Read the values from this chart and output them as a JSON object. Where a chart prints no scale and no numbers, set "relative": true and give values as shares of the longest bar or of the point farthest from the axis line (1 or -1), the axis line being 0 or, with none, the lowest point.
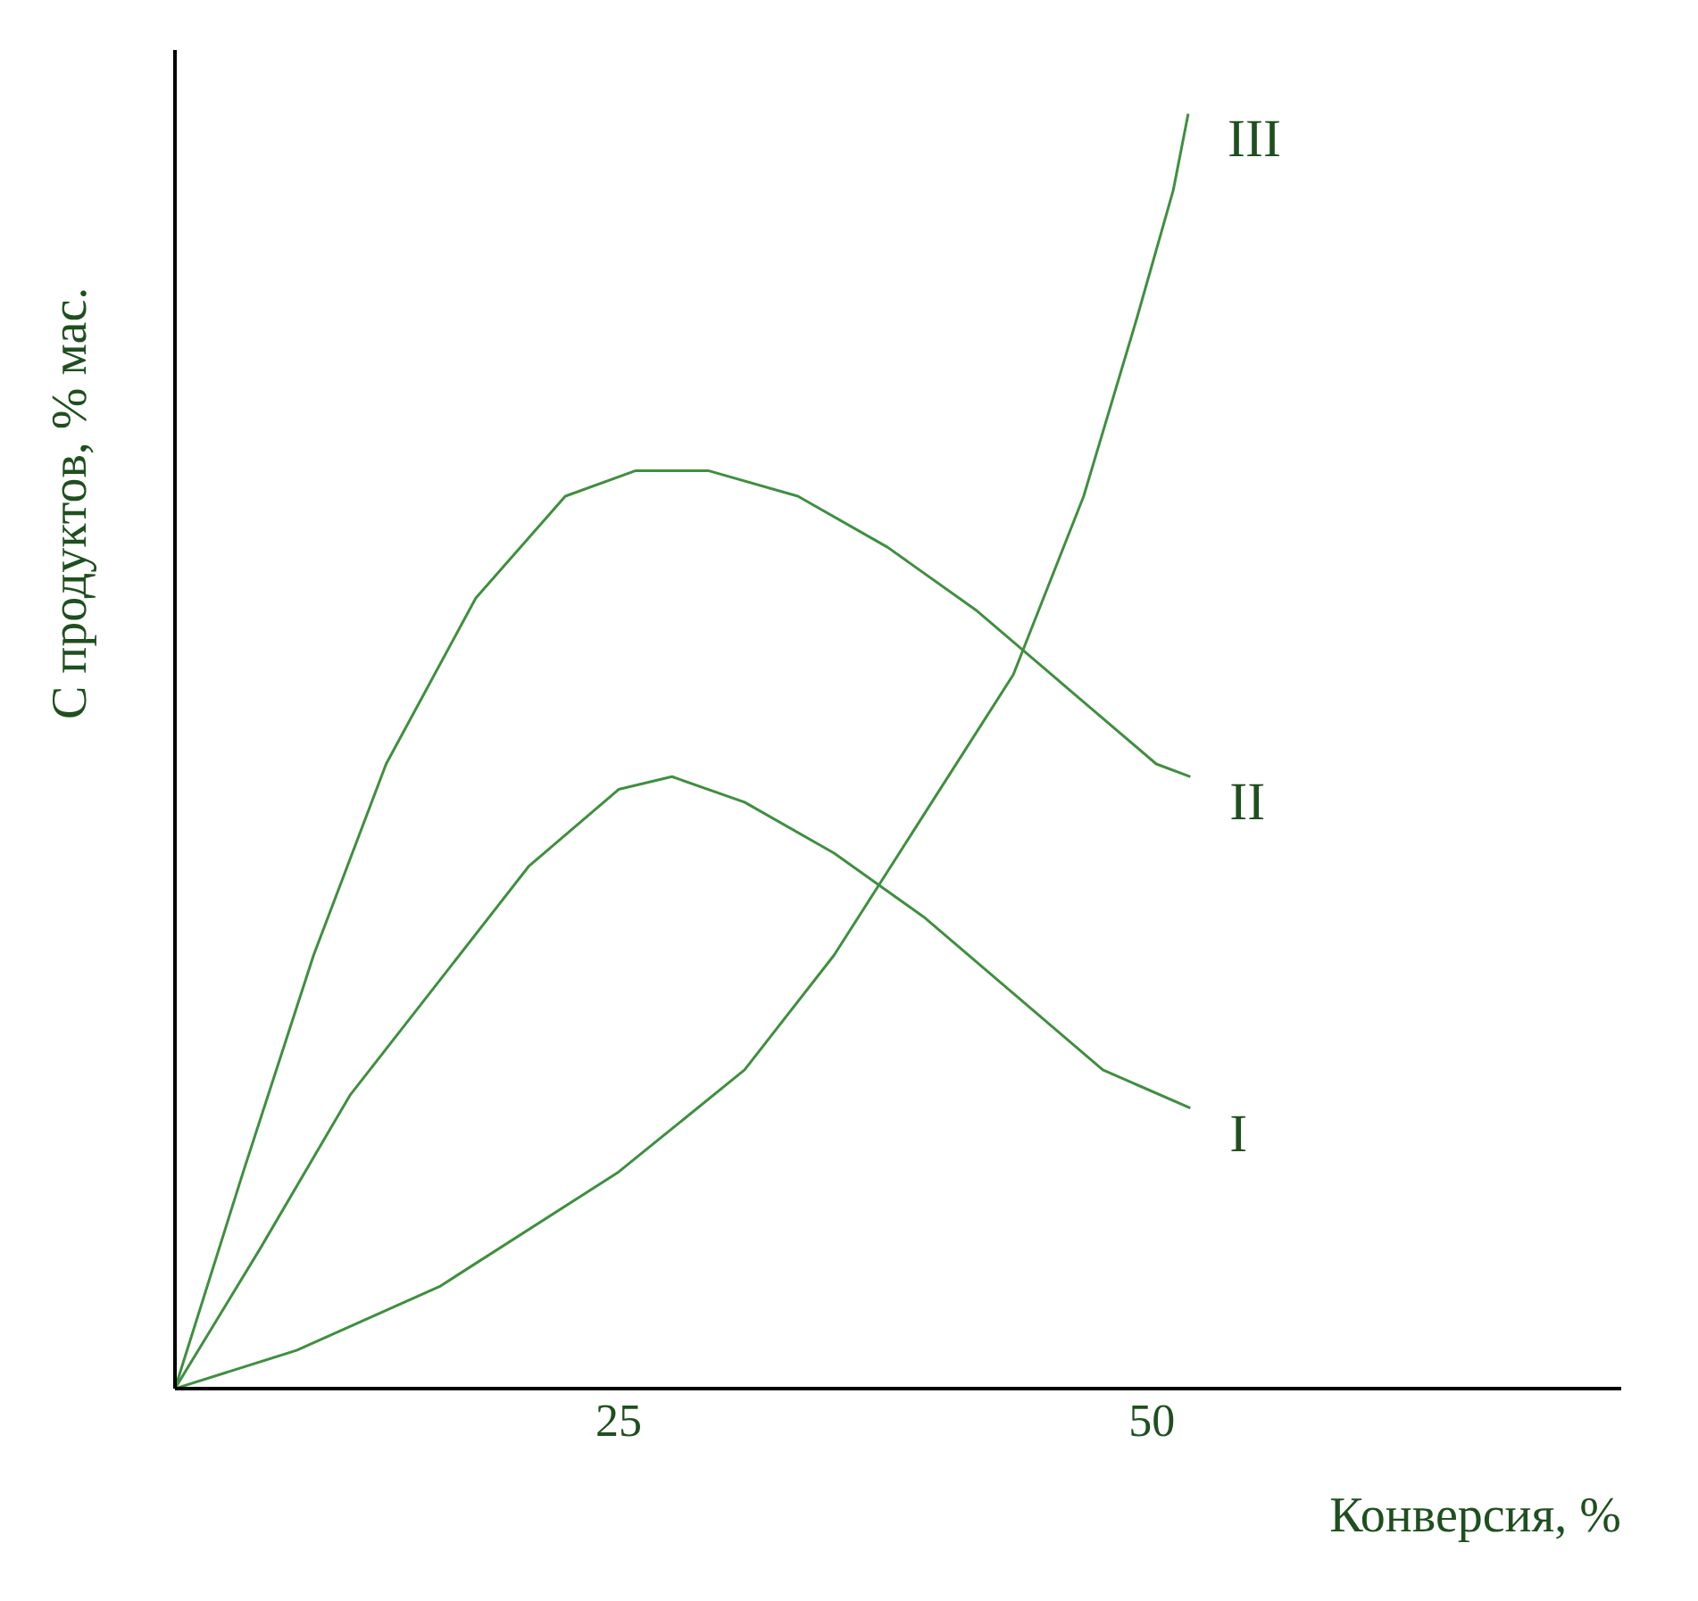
{
  "chart_data": {
    "type": "line",
    "xlabel": "Конверсия, %",
    "ylabel": "С продуктов, % мас.",
    "relative": true,
    "xlim": [
      4.2,
      72
    ],
    "xticks": [
      25,
      50
    ],
    "grid": false,
    "legend": false,
    "marker": "none",
    "line_style": "solid",
    "series": [
      {
        "name": "I",
        "color": "#3f8f3f",
        "x": [
          4.2,
          8.2,
          12.4,
          16.6,
          20.8,
          25,
          27.5,
          30.9,
          35.1,
          39.3,
          43.5,
          47.7,
          51.8
        ],
        "values": [
          0,
          0.11,
          0.23,
          0.32,
          0.41,
          0.47,
          0.48,
          0.46,
          0.42,
          0.37,
          0.31,
          0.25,
          0.22
        ]
      },
      {
        "name": "II",
        "color": "#3f8f3f",
        "x": [
          4.2,
          7.4,
          10.7,
          14.1,
          18.3,
          22.5,
          25.8,
          29.2,
          33.4,
          37.6,
          41.8,
          46.0,
          50.2,
          51.8
        ],
        "values": [
          0,
          0.17,
          0.34,
          0.49,
          0.62,
          0.7,
          0.72,
          0.72,
          0.7,
          0.66,
          0.61,
          0.55,
          0.49,
          0.48
        ]
      },
      {
        "name": "III",
        "color": "#3f8f3f",
        "x": [
          4.2,
          9.9,
          16.6,
          25,
          30.9,
          35.1,
          39.3,
          43.5,
          46.8,
          49.3,
          51.0,
          51.7
        ],
        "values": [
          0,
          0.03,
          0.08,
          0.17,
          0.25,
          0.34,
          0.45,
          0.56,
          0.7,
          0.84,
          0.94,
          1
        ]
      }
    ]
  }
}
